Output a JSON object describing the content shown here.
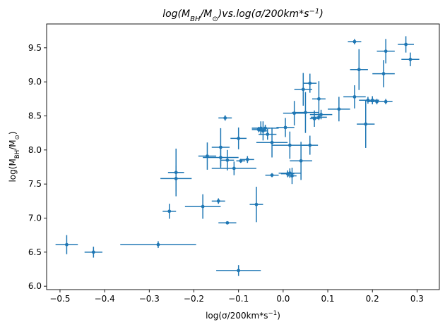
{
  "chart_data": {
    "type": "scatter",
    "title": "log(M_BH/M_⊙) vs. log(σ/200km*s⁻¹)",
    "title_parts": [
      "log(M",
      "BH",
      "/M",
      "⊙",
      ")vs.log(σ/200km*s",
      "−1",
      ")"
    ],
    "xlabel": "log(σ/200km*s⁻¹)",
    "xlabel_parts": [
      "log(σ/200km*s",
      "−1",
      ")"
    ],
    "ylabel": "log(M_BH/M_⊙)",
    "ylabel_parts": [
      "log(M",
      "BH",
      "/M",
      "⊙",
      ")"
    ],
    "xlim": [
      -0.53,
      0.35
    ],
    "ylim": [
      5.95,
      9.85
    ],
    "x_ticks": [
      -0.5,
      -0.4,
      -0.3,
      -0.2,
      -0.1,
      0.0,
      0.1,
      0.2,
      0.3
    ],
    "x_tick_labels": [
      "−0.5",
      "−0.4",
      "−0.3",
      "−0.2",
      "−0.1",
      "0.0",
      "0.1",
      "0.2",
      "0.3"
    ],
    "y_ticks": [
      6.0,
      6.5,
      7.0,
      7.5,
      8.0,
      8.5,
      9.0,
      9.5
    ],
    "y_tick_labels": [
      "6.0",
      "6.5",
      "7.0",
      "7.5",
      "8.0",
      "8.5",
      "9.0",
      "9.5"
    ],
    "grid": false,
    "legend": "none",
    "color": "#1f77b4",
    "points": [
      {
        "x": -0.485,
        "y": 6.61,
        "xerr": 0.025,
        "yerr": 0.14
      },
      {
        "x": -0.425,
        "y": 6.5,
        "xerr": 0.02,
        "yerr": 0.08
      },
      {
        "x": -0.28,
        "y": 6.61,
        "xerr": 0.085,
        "yerr": 0.05
      },
      {
        "x": -0.255,
        "y": 7.1,
        "xerr": 0.015,
        "yerr": 0.11
      },
      {
        "x": -0.24,
        "y": 7.67,
        "xerr": 0.018,
        "yerr": 0.35
      },
      {
        "x": -0.24,
        "y": 7.58,
        "xerr": 0.035,
        "yerr": 0.19
      },
      {
        "x": -0.18,
        "y": 7.17,
        "xerr": 0.04,
        "yerr": 0.18
      },
      {
        "x": -0.17,
        "y": 7.91,
        "xerr": 0.02,
        "yerr": 0.2
      },
      {
        "x": -0.145,
        "y": 7.25,
        "xerr": 0.015,
        "yerr": 0.04
      },
      {
        "x": -0.14,
        "y": 8.04,
        "xerr": 0.02,
        "yerr": 0.28
      },
      {
        "x": -0.14,
        "y": 7.89,
        "xerr": 0.04,
        "yerr": 0.15
      },
      {
        "x": -0.13,
        "y": 8.47,
        "xerr": 0.015,
        "yerr": 0.04
      },
      {
        "x": -0.125,
        "y": 7.85,
        "xerr": 0.015,
        "yerr": 0.15
      },
      {
        "x": -0.125,
        "y": 6.93,
        "xerr": 0.02,
        "yerr": 0.02
      },
      {
        "x": -0.11,
        "y": 7.73,
        "xerr": 0.05,
        "yerr": 0.1
      },
      {
        "x": -0.1,
        "y": 8.17,
        "xerr": 0.018,
        "yerr": 0.16
      },
      {
        "x": -0.1,
        "y": 6.23,
        "xerr": 0.05,
        "yerr": 0.08
      },
      {
        "x": -0.095,
        "y": 7.84,
        "xerr": 0.01,
        "yerr": 0.03
      },
      {
        "x": -0.08,
        "y": 7.86,
        "xerr": 0.015,
        "yerr": 0.05
      },
      {
        "x": -0.06,
        "y": 7.2,
        "xerr": 0.015,
        "yerr": 0.26
      },
      {
        "x": -0.055,
        "y": 8.3,
        "xerr": 0.015,
        "yerr": 0.04
      },
      {
        "x": -0.05,
        "y": 8.32,
        "xerr": 0.02,
        "yerr": 0.1
      },
      {
        "x": -0.045,
        "y": 8.28,
        "xerr": 0.01,
        "yerr": 0.14
      },
      {
        "x": -0.04,
        "y": 8.32,
        "xerr": 0.03,
        "yerr": 0.05
      },
      {
        "x": -0.035,
        "y": 8.23,
        "xerr": 0.02,
        "yerr": 0.08
      },
      {
        "x": -0.025,
        "y": 8.11,
        "xerr": 0.035,
        "yerr": 0.22
      },
      {
        "x": -0.025,
        "y": 7.63,
        "xerr": 0.015,
        "yerr": 0.03
      },
      {
        "x": 0.005,
        "y": 8.33,
        "xerr": 0.02,
        "yerr": 0.14
      },
      {
        "x": 0.01,
        "y": 7.65,
        "xerr": 0.015,
        "yerr": 0.05
      },
      {
        "x": 0.015,
        "y": 8.07,
        "xerr": 0.04,
        "yerr": 0.2
      },
      {
        "x": 0.015,
        "y": 7.66,
        "xerr": 0.025,
        "yerr": 0.07
      },
      {
        "x": 0.02,
        "y": 7.62,
        "xerr": 0.01,
        "yerr": 0.12
      },
      {
        "x": 0.025,
        "y": 8.54,
        "xerr": 0.025,
        "yerr": 0.18
      },
      {
        "x": 0.04,
        "y": 7.84,
        "xerr": 0.025,
        "yerr": 0.28
      },
      {
        "x": 0.045,
        "y": 8.89,
        "xerr": 0.02,
        "yerr": 0.24
      },
      {
        "x": 0.05,
        "y": 8.55,
        "xerr": 0.03,
        "yerr": 0.3
      },
      {
        "x": 0.06,
        "y": 8.98,
        "xerr": 0.015,
        "yerr": 0.14
      },
      {
        "x": 0.06,
        "y": 8.07,
        "xerr": 0.018,
        "yerr": 0.14
      },
      {
        "x": 0.07,
        "y": 8.46,
        "xerr": 0.01,
        "yerr": 0.12
      },
      {
        "x": 0.08,
        "y": 8.75,
        "xerr": 0.015,
        "yerr": 0.26
      },
      {
        "x": 0.08,
        "y": 8.48,
        "xerr": 0.018,
        "yerr": 0.04
      },
      {
        "x": 0.085,
        "y": 8.52,
        "xerr": 0.025,
        "yerr": 0.07
      },
      {
        "x": 0.125,
        "y": 8.6,
        "xerr": 0.025,
        "yerr": 0.18
      },
      {
        "x": 0.16,
        "y": 9.59,
        "xerr": 0.015,
        "yerr": 0.04
      },
      {
        "x": 0.16,
        "y": 8.78,
        "xerr": 0.025,
        "yerr": 0.17
      },
      {
        "x": 0.17,
        "y": 9.18,
        "xerr": 0.02,
        "yerr": 0.3
      },
      {
        "x": 0.185,
        "y": 8.38,
        "xerr": 0.02,
        "yerr": 0.35
      },
      {
        "x": 0.19,
        "y": 8.73,
        "xerr": 0.02,
        "yerr": 0.05
      },
      {
        "x": 0.2,
        "y": 8.73,
        "xerr": 0.015,
        "yerr": 0.06
      },
      {
        "x": 0.21,
        "y": 8.71,
        "xerr": 0.02,
        "yerr": 0.04
      },
      {
        "x": 0.225,
        "y": 9.12,
        "xerr": 0.025,
        "yerr": 0.2
      },
      {
        "x": 0.23,
        "y": 9.45,
        "xerr": 0.02,
        "yerr": 0.18
      },
      {
        "x": 0.23,
        "y": 8.71,
        "xerr": 0.015,
        "yerr": 0.04
      },
      {
        "x": 0.275,
        "y": 9.55,
        "xerr": 0.018,
        "yerr": 0.12
      },
      {
        "x": 0.285,
        "y": 9.33,
        "xerr": 0.02,
        "yerr": 0.1
      }
    ]
  }
}
